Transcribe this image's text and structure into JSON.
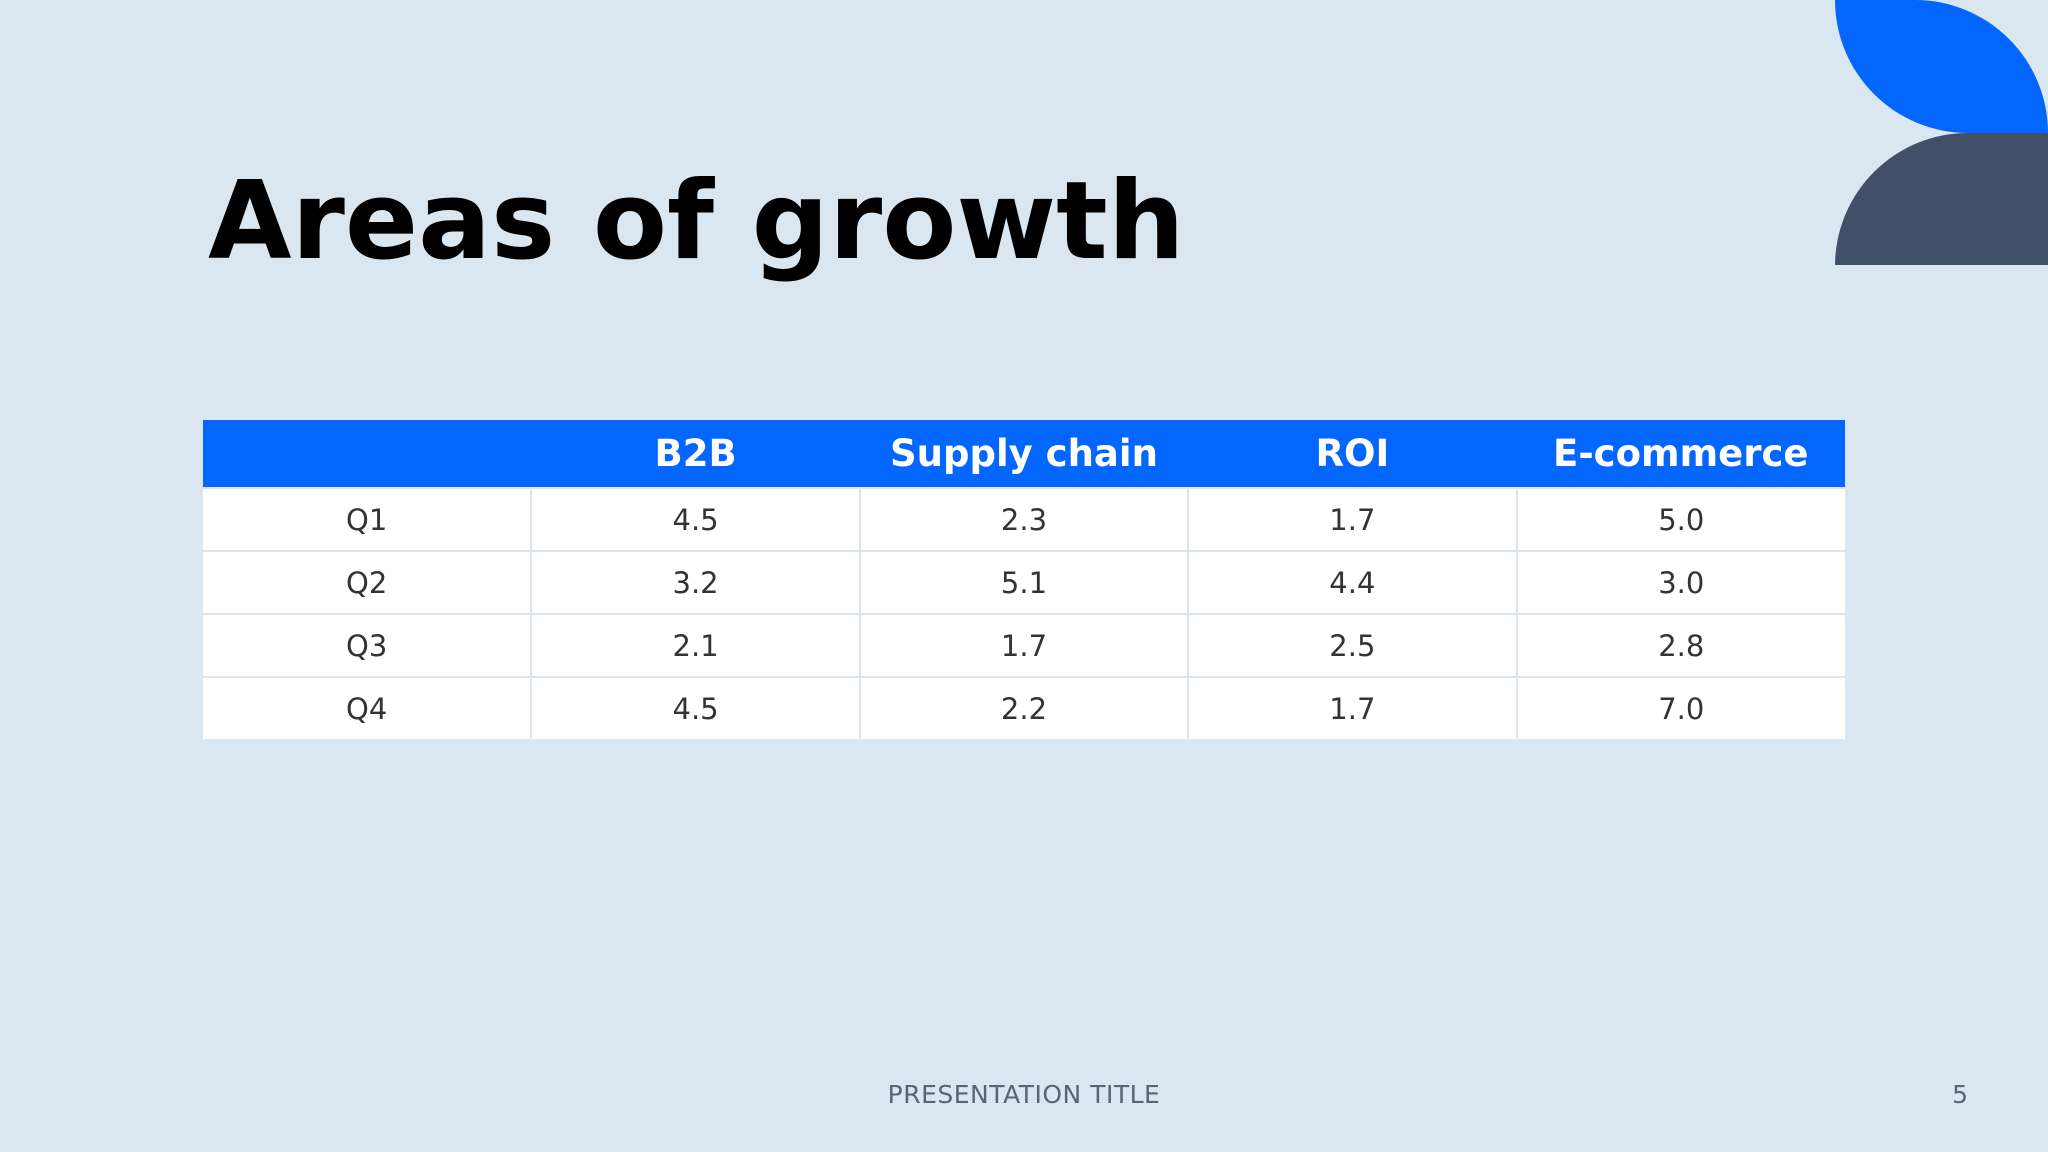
{
  "slide": {
    "title": "Areas of growth",
    "footer_title": "PRESENTATION TITLE",
    "page_number": "5"
  },
  "colors": {
    "background": "#dae6f0",
    "accent_blue": "#0366ff",
    "accent_slate": "#415066",
    "header_text": "#ffffff",
    "cell_text": "#333333"
  },
  "table": {
    "headers": [
      "",
      "B2B",
      "Supply chain",
      "ROI",
      "E-commerce"
    ],
    "rows": [
      [
        "Q1",
        "4.5",
        "2.3",
        "1.7",
        "5.0"
      ],
      [
        "Q2",
        "3.2",
        "5.1",
        "4.4",
        "3.0"
      ],
      [
        "Q3",
        "2.1",
        "1.7",
        "2.5",
        "2.8"
      ],
      [
        "Q4",
        "4.5",
        "2.2",
        "1.7",
        "7.0"
      ]
    ]
  }
}
